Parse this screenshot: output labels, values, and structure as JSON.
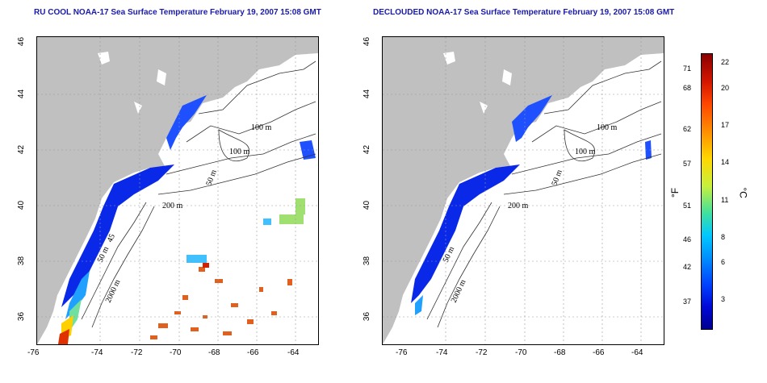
{
  "left_map": {
    "title": "RU COOL NOAA-17 Sea Surface Temperature February 19, 2007 15:08 GMT",
    "contour_labels": [
      "100 m",
      "100 m",
      "50 m",
      "200 m",
      "50 m",
      "45",
      "2000 m"
    ]
  },
  "right_map": {
    "title": "DECLOUDED NOAA-17 Sea Surface Temperature February 19, 2007 15:08 GMT",
    "contour_labels": [
      "100 m",
      "100 m",
      "50 m",
      "200 m",
      "50 m",
      "2000 m"
    ]
  },
  "axes": {
    "lon_ticks": [
      "-76",
      "-74",
      "-72",
      "-70",
      "-68",
      "-66",
      "-64"
    ],
    "lat_ticks": [
      "46",
      "44",
      "42",
      "40",
      "38",
      "36"
    ]
  },
  "colorbar": {
    "f_label": "°F",
    "c_label": "°C",
    "f_ticks": [
      "71",
      "68",
      "62",
      "57",
      "51",
      "46",
      "42",
      "37"
    ],
    "c_ticks": [
      "22",
      "20",
      "17",
      "14",
      "11",
      "8",
      "6",
      "3"
    ],
    "colors": [
      "#8b0000",
      "#ff4500",
      "#ffd700",
      "#3fe0a0",
      "#00c8ff",
      "#0040ff",
      "#000090"
    ]
  }
}
